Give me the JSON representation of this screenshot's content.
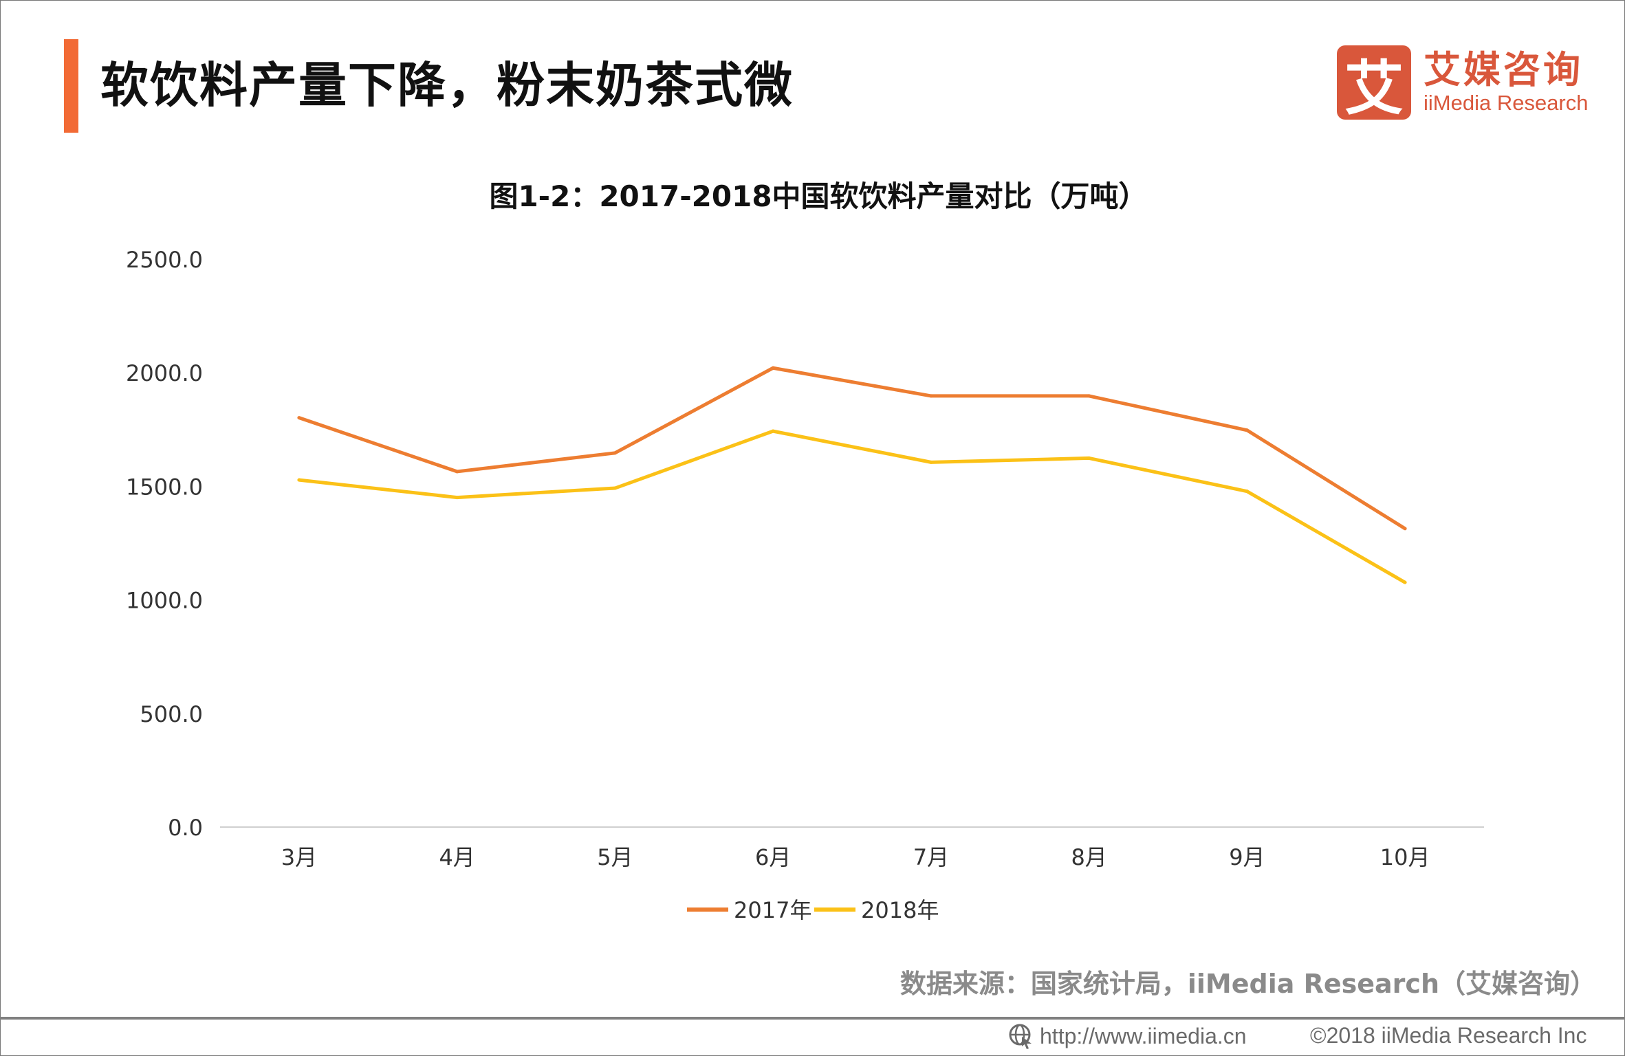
{
  "header": {
    "title": "软饮料产量下降，粉末奶茶式微"
  },
  "logo": {
    "icon_char": "艾",
    "cn": "艾媒咨询",
    "en": "iiMedia Research",
    "color": "#d9573b"
  },
  "accent_color": "#f26a35",
  "chart_data": {
    "type": "line",
    "title": "图1-2：2017-2018中国软饮料产量对比（万吨）",
    "categories": [
      "3月",
      "4月",
      "5月",
      "6月",
      "7月",
      "8月",
      "9月",
      "10月"
    ],
    "series": [
      {
        "name": "2017年",
        "color": "#ed7d31",
        "values": [
          1802,
          1565,
          1647,
          2021,
          1898,
          1898,
          1747,
          1314
        ]
      },
      {
        "name": "2018年",
        "color": "#fbc117",
        "values": [
          1528,
          1451,
          1492,
          1743,
          1606,
          1624,
          1478,
          1077
        ]
      }
    ],
    "ylim": [
      0,
      2500
    ],
    "yticks": [
      "0.0",
      "500.0",
      "1000.0",
      "1500.0",
      "2000.0",
      "2500.0"
    ],
    "ytick_values": [
      0,
      500,
      1000,
      1500,
      2000,
      2500
    ],
    "grid": false,
    "legend_position": "bottom"
  },
  "source": "数据来源：国家统计局，iiMedia Research（艾媒咨询）",
  "footer": {
    "url": "http://www.iimedia.cn",
    "copyright": "©2018  iiMedia Research  Inc",
    "icon": "globe-cursor-icon"
  }
}
